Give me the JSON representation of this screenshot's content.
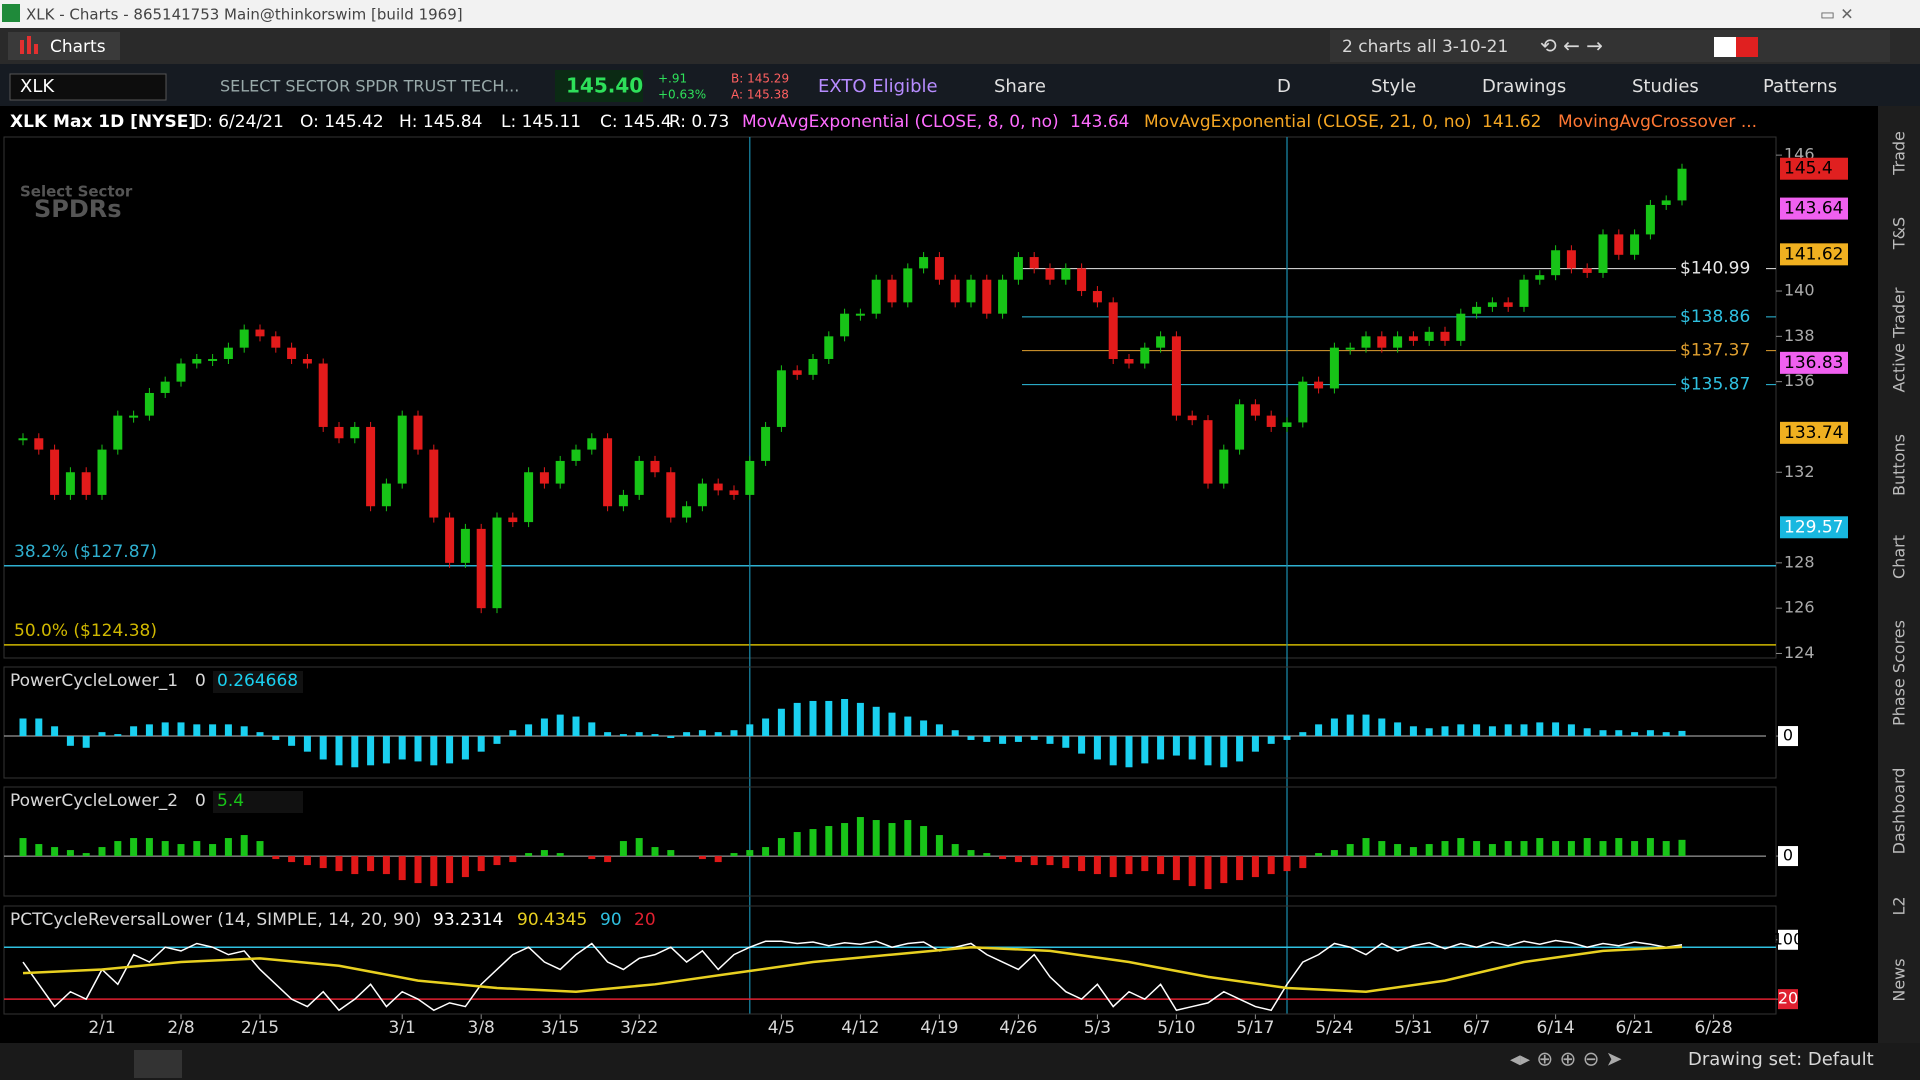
{
  "window": {
    "title": "XLK - Charts - 865141753 Main@thinkorswim [build 1969]",
    "tab": "Charts",
    "layout": "2 charts all 3-10-21"
  },
  "toolbar": {
    "symbol": "XLK",
    "description": "SELECT SECTOR SPDR TRUST TECH...",
    "last": "145.40",
    "change": "+.91",
    "change_pct": "+0.63%",
    "bid": "B: 145.29",
    "ask": "A: 145.38",
    "exto": "EXTO Eligible",
    "buttons": [
      "Share",
      "D",
      "Style",
      "Drawings",
      "Studies",
      "Patterns"
    ]
  },
  "info": [
    "XLK Max 1D [NYSE]",
    "D: 6/24/21",
    "O: 145.42",
    "H: 145.84",
    "L: 145.11",
    "C: 145.4",
    "R: 0.73"
  ],
  "studies": [
    {
      "name": "MovAvgExponential (CLOSE, 8, 0, no)",
      "value": "143.64",
      "color": "#ff6cff"
    },
    {
      "name": "MovAvgExponential (CLOSE, 21, 0, no)",
      "value": "141.62",
      "color": "#f5a623"
    },
    {
      "name": "MovingAvgCrossover ...",
      "color": "#ff7733"
    }
  ],
  "watermark": [
    "Select Sector",
    "SPDRs"
  ],
  "sidebar": [
    "Trade",
    "T&S",
    "Active Trader",
    "Buttons",
    "Chart",
    "Phase Scores",
    "Dashboard",
    "L2",
    "News"
  ],
  "status": "Drawing set: Default",
  "chart_data": [
    {
      "type": "candlestick",
      "up_color": "#17c417",
      "down_color": "#e31b1b",
      "values": [
        133.5,
        133,
        131,
        132,
        131,
        133,
        134.5,
        134.5,
        135.5,
        136,
        136.8,
        137,
        137,
        137.5,
        138.3,
        138,
        137.5,
        137,
        136.8,
        134,
        133.5,
        134,
        130.5,
        131.5,
        134.5,
        133,
        130,
        128,
        129.5,
        126,
        130,
        129.8,
        132,
        131.5,
        132.5,
        133,
        133.5,
        130.5,
        131,
        132.5,
        132,
        130,
        130.5,
        131.5,
        131.2,
        131,
        132.5,
        134,
        136.5,
        136.3,
        137,
        138,
        139,
        139,
        140.5,
        139.5,
        141,
        141.5,
        140.5,
        139.5,
        140.5,
        139,
        140.5,
        141.5,
        141,
        140.5,
        141,
        140,
        139.5,
        137,
        136.8,
        137.5,
        138,
        134.5,
        134.3,
        131.5,
        133,
        135,
        134.5,
        134,
        134.2,
        136,
        135.7,
        137.5,
        137.5,
        138,
        137.5,
        138,
        137.8,
        138.2,
        137.8,
        139,
        139.3,
        139.5,
        139.3,
        140.5,
        140.7,
        141.8,
        141,
        140.8,
        142.5,
        141.6,
        142.5,
        143.8,
        144,
        145.4
      ],
      "ylim": [
        123.8,
        146.8
      ],
      "yticks": [
        146,
        140,
        138,
        136,
        132,
        128,
        126,
        124
      ],
      "xticks": [
        {
          "value": 5,
          "label": "2/1"
        },
        {
          "value": 10,
          "label": "2/8"
        },
        {
          "value": 15,
          "label": "2/15"
        },
        {
          "value": 24,
          "label": "3/1"
        },
        {
          "value": 29,
          "label": "3/8"
        },
        {
          "value": 34,
          "label": "3/15"
        },
        {
          "value": 39,
          "label": "3/22"
        },
        {
          "value": 48,
          "label": "4/5"
        },
        {
          "value": 53,
          "label": "4/12"
        },
        {
          "value": 58,
          "label": "4/19"
        },
        {
          "value": 63,
          "label": "4/26"
        },
        {
          "value": 68,
          "label": "5/3"
        },
        {
          "value": 73,
          "label": "5/10"
        },
        {
          "value": 78,
          "label": "5/17"
        },
        {
          "value": 83,
          "label": "5/24"
        },
        {
          "value": 88,
          "label": "5/31"
        },
        {
          "value": 92,
          "label": "6/7"
        },
        {
          "value": 97,
          "label": "6/14"
        },
        {
          "value": 102,
          "label": "6/21"
        },
        {
          "value": 107,
          "label": "6/28"
        }
      ],
      "levels": [
        {
          "value": 140.99,
          "label": "$140.99",
          "color": "#e8e8e8"
        },
        {
          "value": 138.86,
          "label": "$138.86",
          "color": "#2fc0e0"
        },
        {
          "value": 137.37,
          "label": "$137.37",
          "color": "#e0a030"
        },
        {
          "value": 135.87,
          "label": "$135.87",
          "color": "#2fc0e0"
        }
      ],
      "fib": [
        {
          "value": 127.87,
          "label": "38.2% ($127.87)",
          "color": "#2fb0d0"
        },
        {
          "value": 124.38,
          "label": "50.0% ($124.38)",
          "color": "#d0b800"
        }
      ],
      "badges": [
        {
          "value": 145.4,
          "color": "#e02020"
        },
        {
          "value": 143.64,
          "color": "#f060f0"
        },
        {
          "value": 141.62,
          "color": "#f0b020"
        },
        {
          "value": 136.83,
          "color": "#f060f0"
        },
        {
          "value": 133.74,
          "color": "#f0b020"
        },
        {
          "value": 129.57,
          "color": "#18b8e0"
        }
      ],
      "vlines": [
        46,
        80
      ]
    },
    {
      "type": "bar",
      "title": "PowerCycleLower_1",
      "param": "0",
      "color": "#1ad0f0",
      "ylim": [
        -2.15,
        3.54
      ],
      "yticks": [
        0
      ],
      "values": [
        0.9,
        0.9,
        0.5,
        -0.5,
        -0.6,
        0.2,
        0.1,
        0.5,
        0.6,
        0.7,
        0.7,
        0.6,
        0.6,
        0.6,
        0.5,
        0.2,
        -0.2,
        -0.5,
        -0.8,
        -1.2,
        -1.5,
        -1.6,
        -1.5,
        -1.4,
        -1.2,
        -1.3,
        -1.5,
        -1.4,
        -1.2,
        -0.8,
        -0.4,
        0.3,
        0.6,
        0.9,
        1.1,
        1.0,
        0.7,
        0.2,
        0.1,
        0.2,
        0.1,
        -0.1,
        0.2,
        0.3,
        0.2,
        0.3,
        0.6,
        0.9,
        1.4,
        1.7,
        1.8,
        1.8,
        1.9,
        1.7,
        1.5,
        1.2,
        1.0,
        0.8,
        0.6,
        0.3,
        -0.2,
        -0.3,
        -0.4,
        -0.3,
        -0.2,
        -0.4,
        -0.6,
        -0.9,
        -1.2,
        -1.5,
        -1.6,
        -1.4,
        -1.2,
        -1.0,
        -1.2,
        -1.5,
        -1.6,
        -1.3,
        -0.8,
        -0.4,
        -0.2,
        0.2,
        0.6,
        0.9,
        1.1,
        1.1,
        0.9,
        0.7,
        0.5,
        0.4,
        0.5,
        0.6,
        0.6,
        0.5,
        0.6,
        0.6,
        0.7,
        0.7,
        0.6,
        0.4,
        0.3,
        0.3,
        0.2,
        0.3,
        0.2,
        0.264668
      ]
    },
    {
      "type": "bar",
      "title": "PowerCycleLower_2",
      "param": "0",
      "up_color": "#18c418",
      "down_color": "#e01818",
      "ylim": [
        -13.3,
        23
      ],
      "yticks": [
        0
      ],
      "values": [
        6,
        4,
        3,
        2,
        1,
        3,
        5,
        6,
        6,
        5,
        4,
        5,
        4,
        6,
        7,
        5,
        -1,
        -2,
        -3,
        -4,
        -5,
        -6,
        -5,
        -6,
        -8,
        -9,
        -10,
        -9,
        -7,
        -5,
        -3,
        -2,
        1,
        2,
        1,
        0,
        -1,
        -2,
        5,
        6,
        3,
        2,
        0,
        -1,
        -2,
        1,
        2,
        3,
        6,
        8,
        9,
        10,
        11,
        13,
        12,
        11,
        12,
        10,
        7,
        4,
        2,
        1,
        -1,
        -2,
        -3,
        -3,
        -4,
        -5,
        -6,
        -7,
        -6,
        -5,
        -6,
        -8,
        -10,
        -11,
        -9,
        -8,
        -7,
        -6,
        -5,
        -4,
        1,
        2,
        4,
        6,
        5,
        4,
        3,
        4,
        5,
        6,
        5,
        4,
        5,
        5,
        6,
        5,
        5,
        6,
        5,
        6,
        5,
        6,
        5,
        5.4
      ]
    },
    {
      "type": "line",
      "title": "PCTCycleReversalLower (14, SIMPLE, 14, 20, 90)",
      "ylim": [
        0,
        145.5
      ],
      "yticks": [
        100,
        20
      ],
      "levels": [
        {
          "value": 90,
          "color": "#2fc0e0"
        },
        {
          "value": 20,
          "color": "#e02030"
        }
      ],
      "series": [
        {
          "color": "#ffffff",
          "values": [
            70,
            40,
            10,
            30,
            20,
            60,
            40,
            80,
            70,
            90,
            85,
            95,
            90,
            80,
            85,
            60,
            40,
            20,
            10,
            30,
            5,
            20,
            40,
            10,
            30,
            20,
            5,
            15,
            10,
            40,
            60,
            80,
            90,
            70,
            60,
            80,
            95,
            70,
            60,
            75,
            80,
            90,
            70,
            85,
            60,
            80,
            90,
            98,
            98,
            95,
            97,
            92,
            96,
            94,
            98,
            90,
            95,
            97,
            85,
            90,
            95,
            80,
            70,
            60,
            80,
            50,
            30,
            20,
            40,
            10,
            30,
            20,
            40,
            5,
            10,
            15,
            30,
            20,
            10,
            5,
            40,
            70,
            80,
            95,
            90,
            80,
            95,
            85,
            92,
            96,
            88,
            95,
            90,
            97,
            92,
            98,
            94,
            99,
            96,
            90,
            95,
            92,
            97,
            94,
            90,
            93.2314
          ]
        },
        {
          "color": "#e8d020",
          "x": [
            0,
            5,
            10,
            15,
            20,
            25,
            30,
            35,
            40,
            45,
            50,
            55,
            60,
            65,
            70,
            75,
            80,
            85,
            90,
            95,
            100,
            105
          ],
          "values": [
            55,
            60,
            70,
            75,
            65,
            45,
            35,
            30,
            40,
            55,
            70,
            80,
            90,
            85,
            70,
            50,
            35,
            30,
            45,
            70,
            85,
            90.4345
          ]
        }
      ]
    }
  ]
}
